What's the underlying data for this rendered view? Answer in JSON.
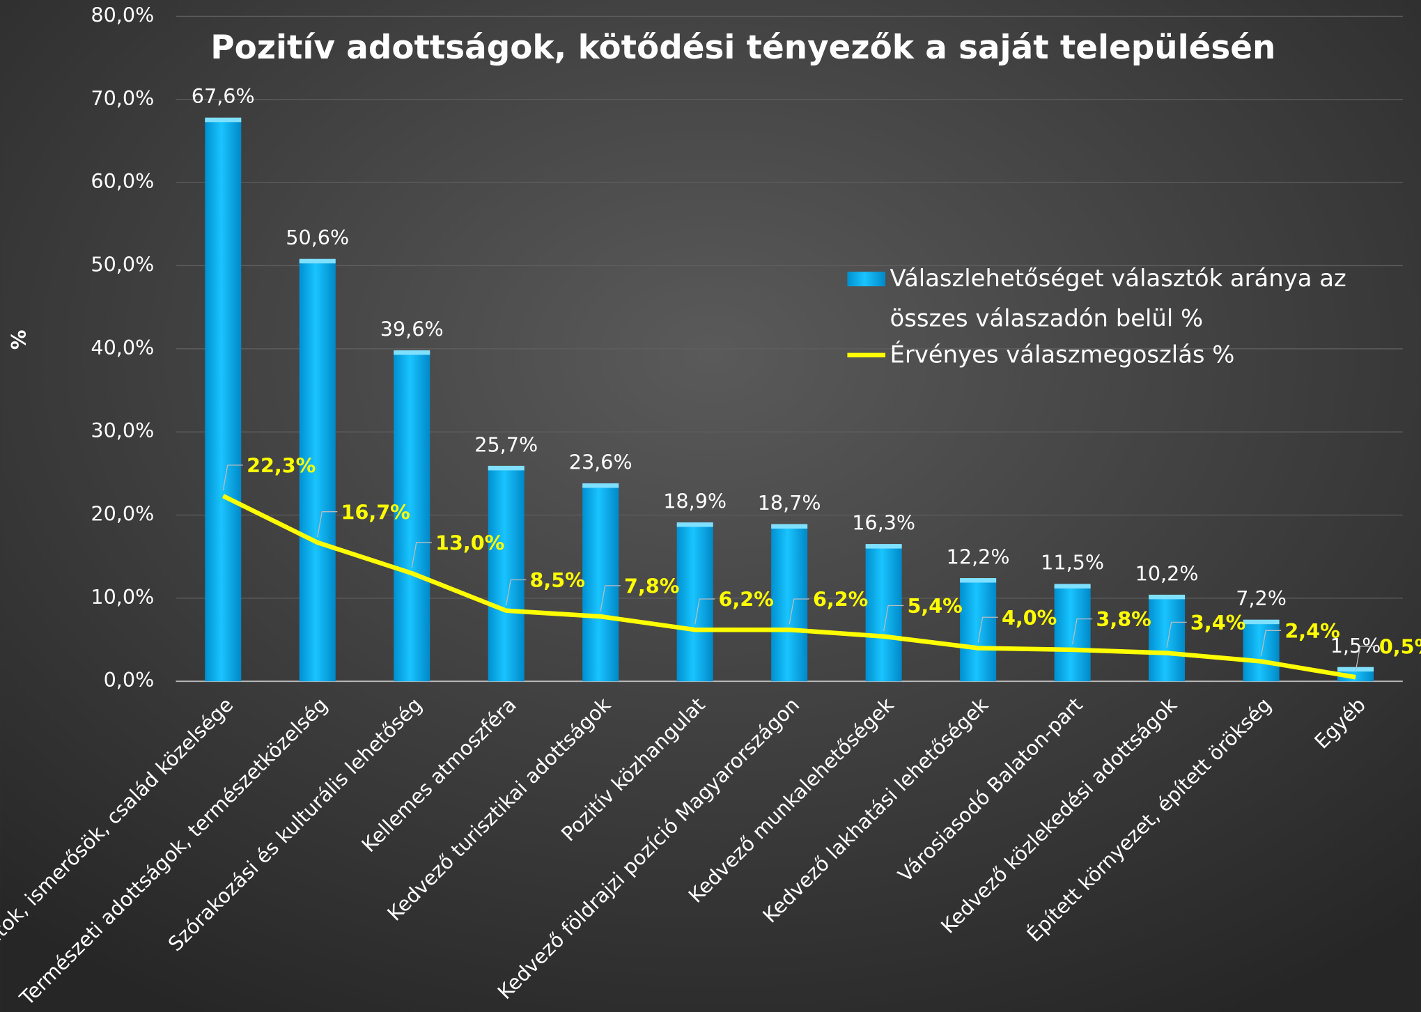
{
  "chart_data": {
    "type": "bar_line",
    "title": "Pozitív adottságok, kötődési tényezők a saját településén",
    "ylabel": "%",
    "categories": [
      "Barátok, ismerősök, család közelsége",
      "Természeti adottságok, természetközelség",
      "Szórakozási és kulturális lehetőség",
      "Kellemes atmoszféra",
      "Kedvező turisztikai adottságok",
      "Pozitív közhangulat",
      "Kedvező földrajzi pozíció Magyarországon",
      "Kedvező munkalehetőségek",
      "Kedvező lakhatási lehetőségek",
      "Városiasodó Balaton-part",
      "Kedvező közlekedési adottságok",
      "Épített környezet, épített örökség",
      "Egyéb"
    ],
    "series": [
      {
        "name": "Válaszlehetőséget választók aránya az összes válaszadón belül %",
        "type": "bar",
        "color": "#00b4f0",
        "values": [
          67.6,
          50.6,
          39.6,
          25.7,
          23.6,
          18.9,
          18.7,
          16.3,
          12.2,
          11.5,
          10.2,
          7.2,
          1.5
        ],
        "value_labels": [
          "67,6%",
          "50,6%",
          "39,6%",
          "25,7%",
          "23,6%",
          "18,9%",
          "18,7%",
          "16,3%",
          "12,2%",
          "11,5%",
          "10,2%",
          "7,2%",
          "1,5%"
        ]
      },
      {
        "name": "Érvényes válaszmegoszlás %",
        "type": "line",
        "color": "#ffff00",
        "values": [
          22.3,
          16.7,
          13.0,
          8.5,
          7.8,
          6.2,
          6.2,
          5.4,
          4.0,
          3.8,
          3.4,
          2.4,
          0.5
        ],
        "value_labels": [
          "22,3%",
          "16,7%",
          "13,0%",
          "8,5%",
          "7,8%",
          "6,2%",
          "6,2%",
          "5,4%",
          "4,0%",
          "3,8%",
          "3,4%",
          "2,4%",
          "0,5%"
        ]
      }
    ],
    "ylim": [
      0,
      80
    ],
    "yticks": [
      {
        "value": 0,
        "label": "0,0%"
      },
      {
        "value": 10,
        "label": "10,0%"
      },
      {
        "value": 20,
        "label": "20,0%"
      },
      {
        "value": 30,
        "label": "30,0%"
      },
      {
        "value": 40,
        "label": "40,0%"
      },
      {
        "value": 50,
        "label": "50,0%"
      },
      {
        "value": 60,
        "label": "60,0%"
      },
      {
        "value": 70,
        "label": "70,0%"
      },
      {
        "value": 80,
        "label": "80,0%"
      }
    ],
    "grid": true
  }
}
